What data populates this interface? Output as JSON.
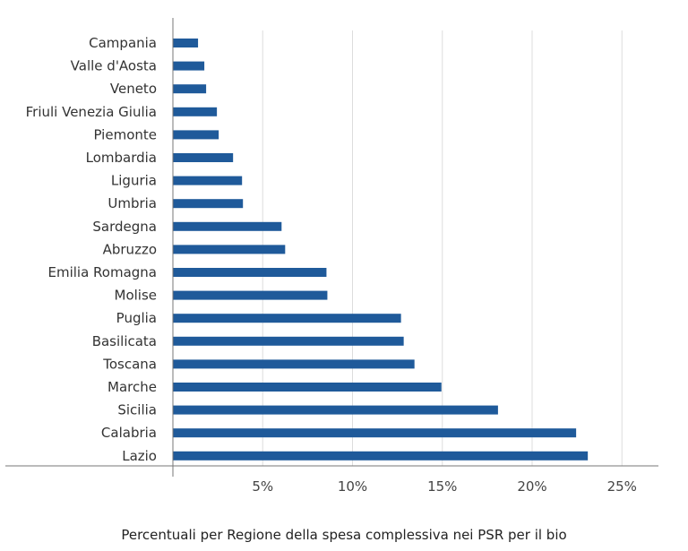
{
  "chart_data": {
    "type": "bar",
    "orientation": "horizontal",
    "title": "Percentuali per Regione della spesa complessiva nei PSR per il bio",
    "xlabel": "",
    "ylabel": "",
    "categories": [
      "Campania",
      "Valle d'Aosta",
      "Veneto",
      "Friuli Venezia Giulia",
      "Piemonte",
      "Lombardia",
      "Liguria",
      "Umbria",
      "Sardegna",
      "Abruzzo",
      "Emilia Romagna",
      "Molise",
      "Puglia",
      "Basilicata",
      "Toscana",
      "Marche",
      "Sicilia",
      "Calabria",
      "Lazio"
    ],
    "values": [
      1.4,
      1.75,
      1.85,
      2.45,
      2.55,
      3.35,
      3.85,
      3.9,
      6.05,
      6.25,
      8.55,
      8.6,
      12.7,
      12.85,
      13.45,
      14.95,
      18.1,
      22.45,
      23.1
    ],
    "xlim": [
      0,
      27
    ],
    "xticks": [
      5,
      10,
      15,
      20,
      25
    ],
    "xtick_labels": [
      "5%",
      "10%",
      "15%",
      "20%",
      "25%"
    ],
    "grid": true,
    "bar_color": "#1f5a9a",
    "grid_color": "#dddddd",
    "axis_color": "#777777"
  }
}
